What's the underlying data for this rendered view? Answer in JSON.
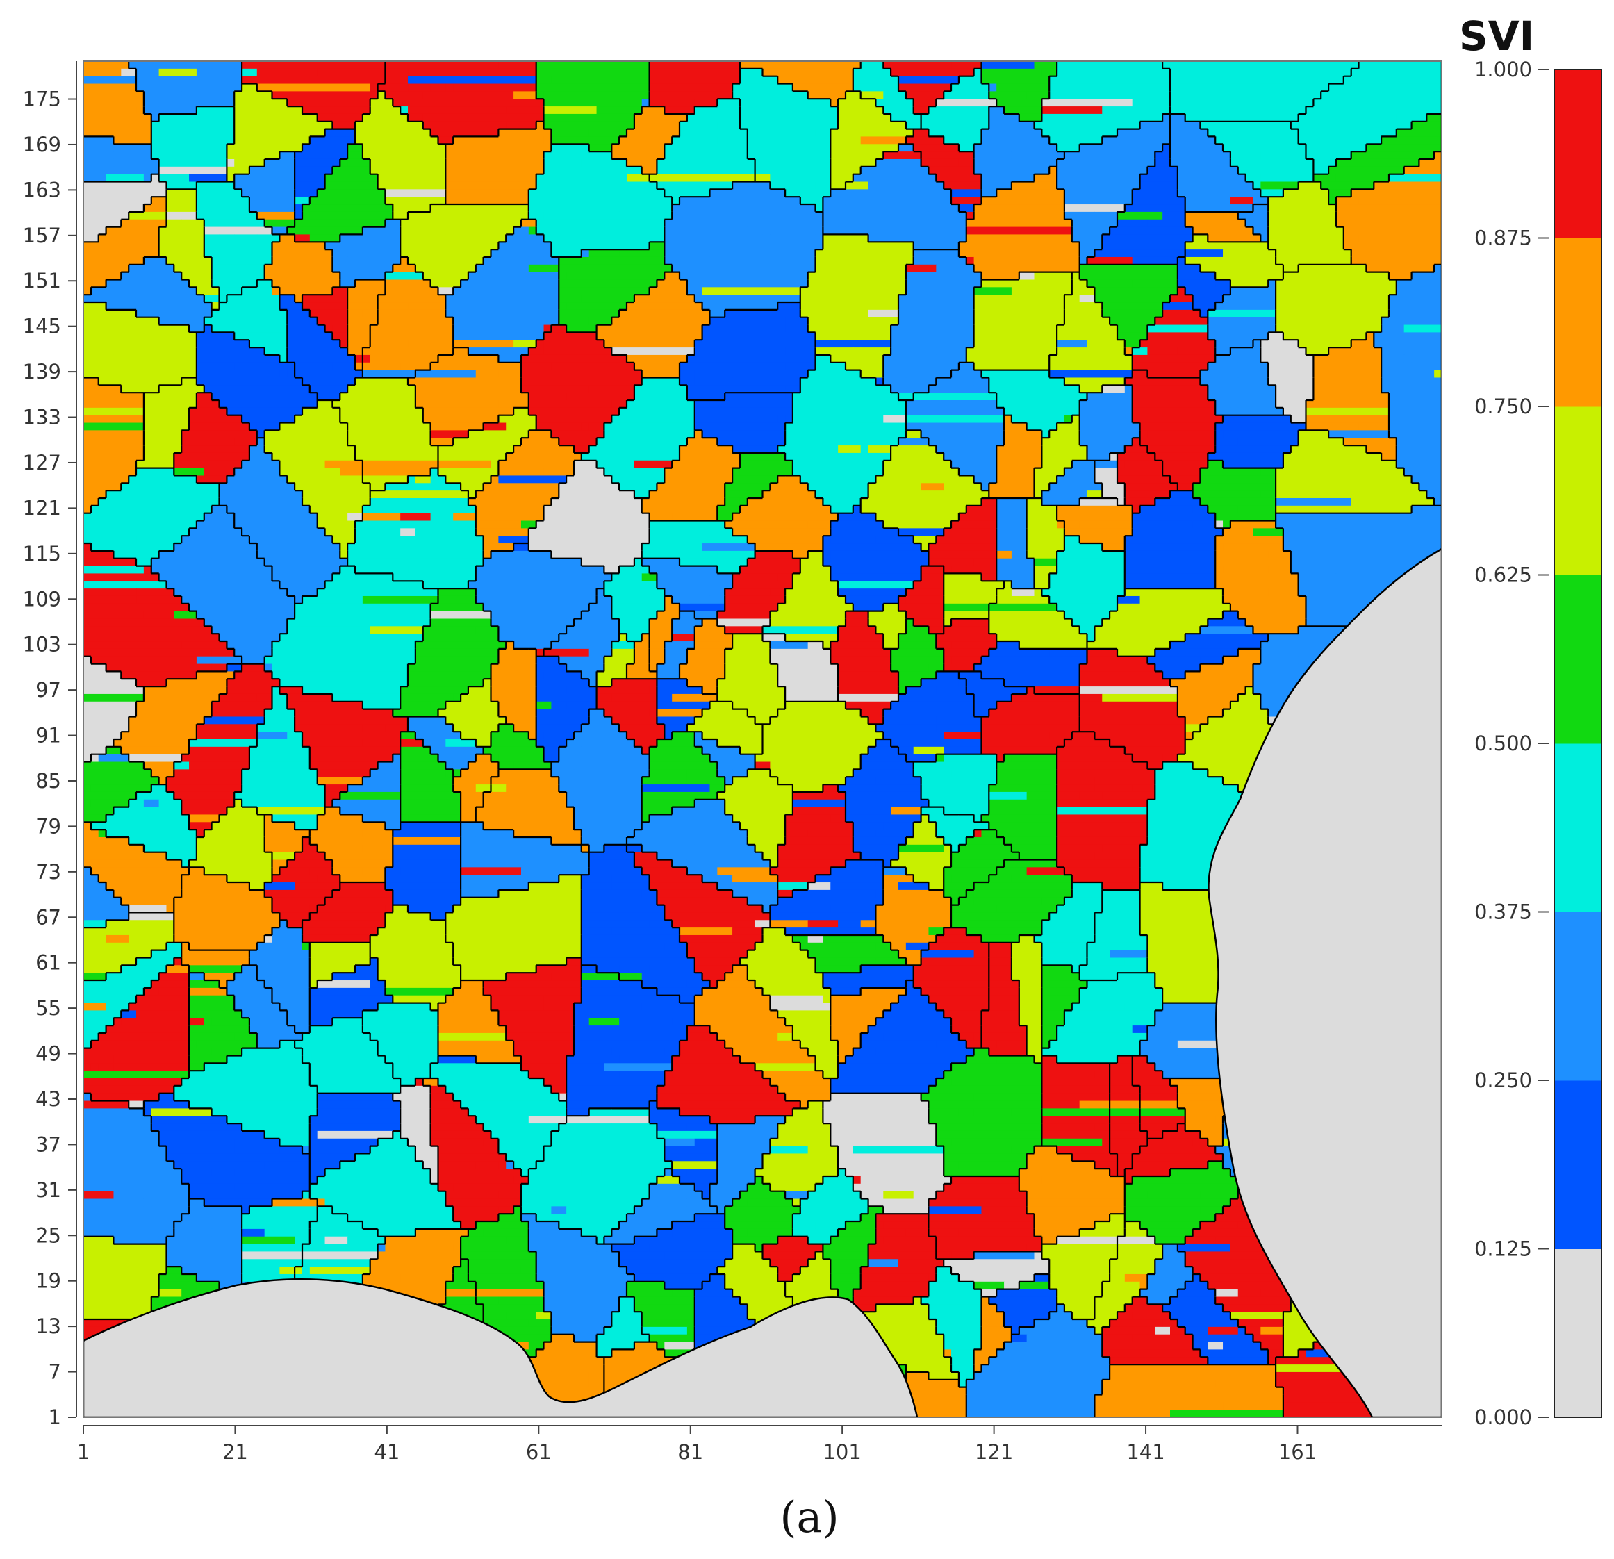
{
  "legend": {
    "title": "SVI",
    "classes": [
      {
        "min": 0.0,
        "max": 0.125,
        "color": "#dcdcdc"
      },
      {
        "min": 0.125,
        "max": 0.25,
        "color": "#0055ff"
      },
      {
        "min": 0.25,
        "max": 0.375,
        "color": "#1e90ff"
      },
      {
        "min": 0.375,
        "max": 0.5,
        "color": "#00eedd"
      },
      {
        "min": 0.5,
        "max": 0.625,
        "color": "#11d911"
      },
      {
        "min": 0.625,
        "max": 0.75,
        "color": "#c8f000"
      },
      {
        "min": 0.75,
        "max": 0.875,
        "color": "#ff9900"
      },
      {
        "min": 0.875,
        "max": 1.0,
        "color": "#ee1111"
      }
    ],
    "tick_labels": [
      "1.000",
      "0.875",
      "0.750",
      "0.625",
      "0.500",
      "0.375",
      "0.250",
      "0.125",
      "0.000"
    ]
  },
  "axes": {
    "x_ticks": [
      "1",
      "21",
      "41",
      "61",
      "81",
      "101",
      "121",
      "141",
      "161"
    ],
    "y_ticks": [
      "175",
      "169",
      "163",
      "157",
      "151",
      "145",
      "139",
      "133",
      "127",
      "121",
      "115",
      "109",
      "103",
      "97",
      "91",
      "85",
      "79",
      "73",
      "67",
      "61",
      "55",
      "49",
      "43",
      "37",
      "31",
      "25",
      "19",
      "13",
      "7",
      "1"
    ],
    "x_range": [
      1,
      180
    ],
    "y_range": [
      1,
      180
    ]
  },
  "grid": {
    "cols": 180,
    "rows": 180,
    "land_color_nodata": "#dcdcdc",
    "boundary_color": "#000000"
  },
  "caption": "(a)"
}
